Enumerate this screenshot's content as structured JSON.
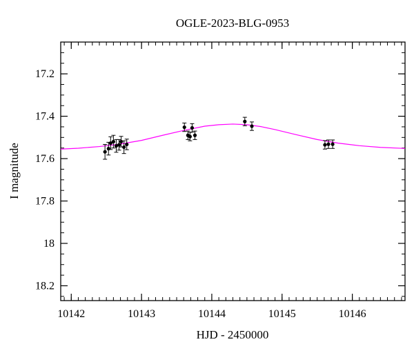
{
  "chart_data": {
    "type": "scatter",
    "title": "OGLE-2023-BLG-0953",
    "xlabel": "HJD - 2450000",
    "ylabel": "I magnitude",
    "xlim": [
      10141.85,
      10146.75
    ],
    "ylim": [
      18.27,
      17.05
    ],
    "y_inverted": true,
    "x_ticks": [
      10142,
      10143,
      10144,
      10145,
      10146
    ],
    "x_tick_labels": [
      "10142",
      "10143",
      "10144",
      "10145",
      "10146"
    ],
    "y_ticks": [
      17.2,
      17.4,
      17.6,
      17.8,
      18,
      18.2
    ],
    "y_tick_labels": [
      "17.2",
      "17.4",
      "17.6",
      "17.8",
      "18",
      "18.2"
    ],
    "x_minor_step": 0.1,
    "y_minor_step": 0.05,
    "grid": false,
    "series": [
      {
        "kind": "points",
        "color": "#000000",
        "x": [
          10142.48,
          10142.53,
          10142.56,
          10142.6,
          10142.64,
          10142.68,
          10142.71,
          10142.75,
          10142.79,
          10143.61,
          10143.66,
          10143.69,
          10143.72,
          10143.76,
          10144.47,
          10144.57,
          10145.61,
          10145.66,
          10145.72
        ],
        "y": [
          17.568,
          17.553,
          17.527,
          17.52,
          17.54,
          17.535,
          17.52,
          17.546,
          17.533,
          17.452,
          17.49,
          17.496,
          17.455,
          17.49,
          17.425,
          17.447,
          17.535,
          17.532,
          17.532
        ],
        "err": [
          0.035,
          0.03,
          0.03,
          0.03,
          0.03,
          0.025,
          0.025,
          0.03,
          0.025,
          0.02,
          0.02,
          0.02,
          0.02,
          0.02,
          0.02,
          0.02,
          0.02,
          0.02,
          0.02
        ]
      },
      {
        "kind": "model",
        "color": "#ff00ff",
        "x": [
          10141.85,
          10142.1,
          10142.4,
          10142.7,
          10143.0,
          10143.3,
          10143.6,
          10143.9,
          10144.1,
          10144.3,
          10144.5,
          10144.7,
          10144.9,
          10145.2,
          10145.5,
          10145.8,
          10146.1,
          10146.4,
          10146.75
        ],
        "y": [
          17.555,
          17.551,
          17.543,
          17.531,
          17.514,
          17.49,
          17.467,
          17.447,
          17.44,
          17.437,
          17.44,
          17.449,
          17.463,
          17.487,
          17.51,
          17.527,
          17.539,
          17.547,
          17.552
        ]
      }
    ]
  }
}
